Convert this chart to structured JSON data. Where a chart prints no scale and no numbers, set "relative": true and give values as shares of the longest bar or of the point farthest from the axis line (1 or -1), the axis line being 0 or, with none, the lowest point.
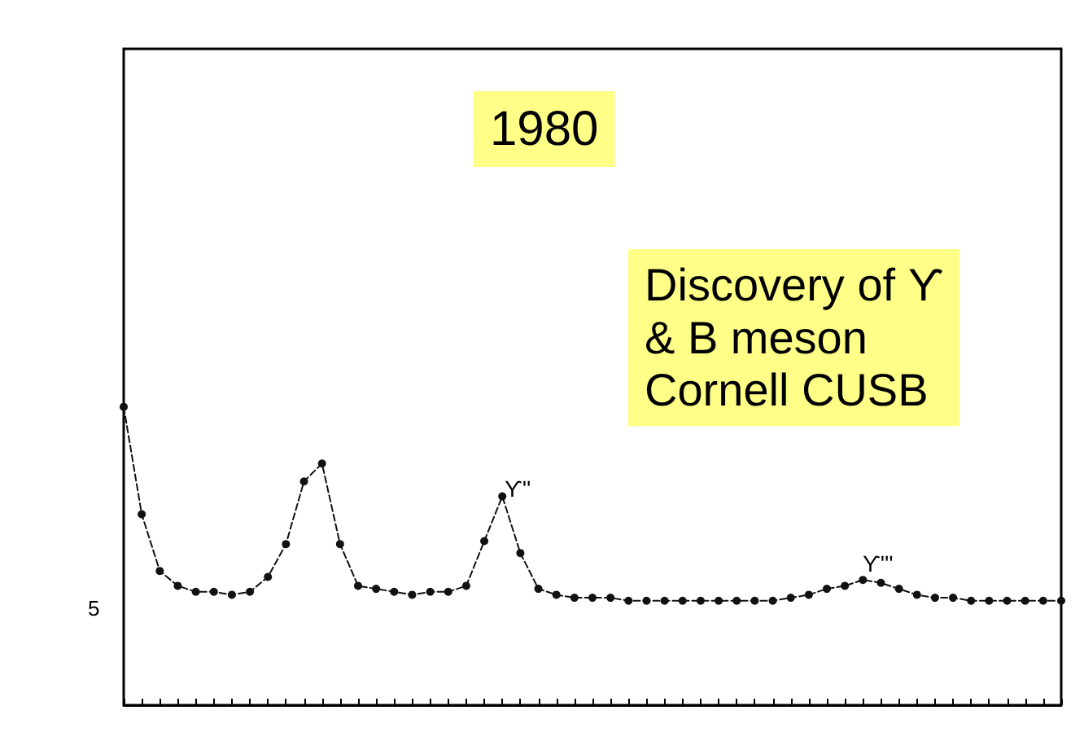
{
  "chart_data": {
    "type": "line",
    "relative": true,
    "marker": "circle",
    "line_style": "dashed",
    "grid": false,
    "categories": [
      null,
      null,
      null,
      null,
      null,
      null,
      null,
      null,
      null,
      null,
      null,
      null,
      null,
      null,
      null,
      null,
      null,
      null,
      null,
      null,
      null,
      null,
      null,
      null,
      null,
      null,
      null,
      null,
      null,
      null,
      null,
      null,
      null,
      null,
      null,
      null,
      null,
      null,
      null,
      null,
      null,
      null,
      null,
      null,
      null,
      null,
      null,
      null,
      null,
      null,
      null,
      null,
      null
    ],
    "series": [
      {
        "color": "#111111",
        "values": [
          1.0,
          0.64,
          0.45,
          0.4,
          0.38,
          0.38,
          0.37,
          0.38,
          0.43,
          0.54,
          0.75,
          0.81,
          0.54,
          0.4,
          0.39,
          0.38,
          0.37,
          0.38,
          0.38,
          0.4,
          0.55,
          0.7,
          0.51,
          0.39,
          0.37,
          0.36,
          0.36,
          0.36,
          0.35,
          0.35,
          0.35,
          0.35,
          0.35,
          0.35,
          0.35,
          0.35,
          0.35,
          0.36,
          0.37,
          0.39,
          0.4,
          0.42,
          0.41,
          0.39,
          0.37,
          0.36,
          0.36,
          0.35,
          0.35,
          0.35,
          0.35,
          0.35,
          0.35
        ]
      }
    ],
    "annotations": [
      "1980",
      "Discovery of ϒ\n& B meson\nCornell CUSB",
      "ϒ''",
      "ϒ'''",
      "5"
    ]
  }
}
